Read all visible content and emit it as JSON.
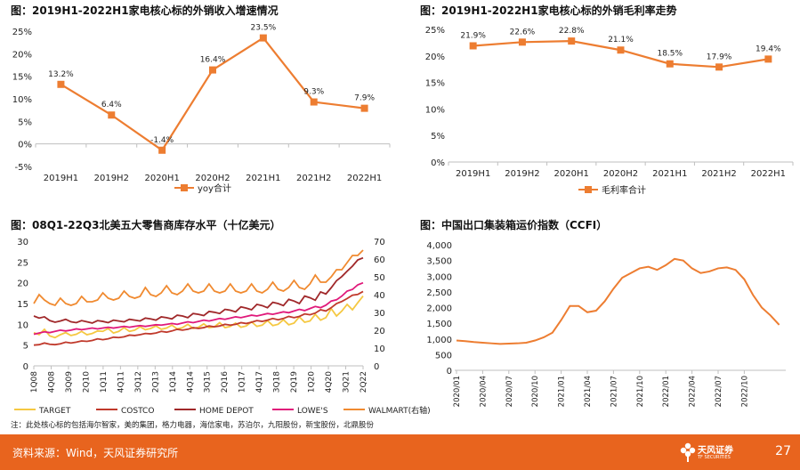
{
  "panels": {
    "p1": {
      "title": "图：2019H1-2022H1家电核心标的外销收入增速情况"
    },
    "p2": {
      "title": "图：2019H1-2022H1家电核心标的外销毛利率走势"
    },
    "p3": {
      "title": "图：08Q1-22Q3北美五大零售商库存水平（十亿美元）"
    },
    "p4": {
      "title": "图：中国出口集装箱运价指数（CCFI）"
    }
  },
  "note": "注：此处核心标的包括海尔智家，美的集团，格力电器，海信家电，苏泊尔，九阳股份，新宝股份，北鼎股份",
  "footer": {
    "source": "资料来源：Wind，天风证券研究所",
    "page": "27",
    "logo_name": "天风证券",
    "logo_sub": "TF SECURITIES"
  },
  "colors": {
    "orange": "#ED7D31",
    "footer": "#E8641E",
    "target": "#F5C842",
    "costco": "#C0392B",
    "homedepot": "#A0282A",
    "lowes": "#E0197A",
    "walmart": "#F08A30"
  },
  "chart_data": [
    {
      "type": "line",
      "categories": [
        "2019H1",
        "2019H2",
        "2020H1",
        "2020H2",
        "2021H1",
        "2021H2",
        "2022H1"
      ],
      "series": [
        {
          "name": "yoy合计",
          "values": [
            13.2,
            6.4,
            -1.4,
            16.4,
            23.5,
            9.3,
            7.9
          ]
        }
      ],
      "data_labels": [
        "13.2%",
        "6.4%",
        "-1.4%",
        "16.4%",
        "23.5%",
        "9.3%",
        "7.9%"
      ],
      "ylim": [
        -5,
        25
      ],
      "yticks": [
        "-5%",
        "0%",
        "5%",
        "10%",
        "15%",
        "20%",
        "25%"
      ],
      "legend": "bottom"
    },
    {
      "type": "line",
      "categories": [
        "2019H1",
        "2019H2",
        "2020H1",
        "2020H2",
        "2021H1",
        "2021H2",
        "2022H1"
      ],
      "series": [
        {
          "name": "毛利率合计",
          "values": [
            21.9,
            22.6,
            22.8,
            21.1,
            18.5,
            17.9,
            19.4
          ]
        }
      ],
      "data_labels": [
        "21.9%",
        "22.6%",
        "22.8%",
        "21.1%",
        "18.5%",
        "17.9%",
        "19.4%"
      ],
      "ylim": [
        0,
        25
      ],
      "yticks": [
        "0%",
        "5%",
        "10%",
        "15%",
        "20%",
        "25%"
      ],
      "legend": "bottom"
    },
    {
      "type": "line",
      "x_tick_labels": [
        "1Q08",
        "4Q08",
        "3Q09",
        "2Q10",
        "1Q11",
        "4Q11",
        "3Q12",
        "2Q13",
        "1Q14",
        "4Q14",
        "3Q15",
        "2Q16",
        "1Q17",
        "4Q17",
        "3Q18",
        "2Q19",
        "1Q20",
        "4Q20",
        "3Q21",
        "2Q22"
      ],
      "ylim": [
        0,
        30
      ],
      "yticks": [
        "0",
        "5",
        "10",
        "15",
        "20",
        "25",
        "30"
      ],
      "y2lim": [
        0,
        70
      ],
      "y2ticks": [
        "0",
        "10",
        "20",
        "30",
        "40",
        "50",
        "60",
        "70"
      ],
      "legend": "bottom",
      "series": [
        {
          "name": "TARGET",
          "axis": "left",
          "values": [
            8.0,
            7.5,
            8.8,
            7.2,
            6.8,
            7.5,
            8.0,
            7.3,
            7.6,
            8.3,
            7.5,
            7.8,
            8.4,
            8.3,
            9.0,
            7.9,
            8.3,
            9.2,
            8.3,
            8.6,
            9.4,
            8.7,
            9.0,
            9.6,
            8.8,
            9.1,
            9.8,
            8.9,
            9.2,
            10.0,
            9.0,
            9.3,
            10.1,
            9.2,
            9.4,
            10.4,
            9.2,
            9.5,
            10.3,
            9.3,
            9.6,
            10.6,
            9.5,
            9.8,
            10.9,
            9.7,
            10.0,
            11.1,
            9.9,
            10.3,
            11.8,
            10.5,
            10.8,
            12.4,
            11.0,
            11.6,
            13.8,
            12.0,
            13.2,
            14.8,
            13.5,
            15.2,
            16.8
          ]
        },
        {
          "name": "COSTCO",
          "axis": "left",
          "values": [
            5.0,
            5.1,
            5.5,
            5.2,
            5.1,
            5.3,
            5.7,
            5.5,
            5.7,
            6.0,
            5.9,
            6.1,
            6.5,
            6.3,
            6.5,
            6.9,
            6.8,
            7.0,
            7.4,
            7.3,
            7.5,
            7.8,
            7.7,
            7.9,
            8.3,
            8.1,
            8.4,
            8.8,
            8.6,
            8.8,
            9.2,
            9.0,
            9.2,
            9.6,
            9.4,
            9.6,
            10.0,
            9.8,
            10.0,
            10.4,
            10.2,
            10.5,
            10.9,
            10.7,
            11.0,
            11.4,
            11.1,
            11.4,
            11.9,
            11.6,
            11.9,
            12.5,
            12.3,
            12.7,
            13.5,
            13.2,
            14.0,
            15.0,
            15.5,
            16.2,
            17.0,
            17.2,
            17.9
          ]
        },
        {
          "name": "HOME DEPOT",
          "axis": "left",
          "values": [
            12.0,
            11.5,
            11.8,
            10.9,
            10.5,
            10.8,
            11.2,
            10.6,
            10.4,
            10.9,
            10.6,
            10.3,
            10.9,
            10.7,
            10.4,
            11.0,
            10.8,
            10.6,
            11.2,
            11.0,
            10.8,
            11.5,
            11.3,
            11.0,
            11.8,
            11.6,
            11.3,
            12.2,
            12.0,
            11.6,
            12.6,
            12.4,
            12.1,
            13.1,
            12.9,
            12.6,
            13.6,
            13.4,
            13.0,
            14.2,
            13.9,
            13.5,
            14.8,
            14.5,
            14.0,
            15.3,
            15.0,
            14.5,
            16.0,
            15.6,
            15.0,
            16.8,
            16.4,
            15.8,
            17.8,
            17.3,
            18.8,
            20.5,
            21.5,
            22.8,
            24.0,
            25.5,
            26.0
          ]
        },
        {
          "name": "LOWE'S",
          "axis": "left",
          "values": [
            7.6,
            7.9,
            8.2,
            8.0,
            8.3,
            8.6,
            8.4,
            8.6,
            8.9,
            8.7,
            8.9,
            9.1,
            8.9,
            9.1,
            9.3,
            9.1,
            9.3,
            9.5,
            9.3,
            9.5,
            9.7,
            9.5,
            9.7,
            9.9,
            9.8,
            10.0,
            10.2,
            10.0,
            10.3,
            10.6,
            10.4,
            10.7,
            11.0,
            10.8,
            11.1,
            11.4,
            11.2,
            11.5,
            11.8,
            11.6,
            11.9,
            12.2,
            12.0,
            12.3,
            12.6,
            12.4,
            12.7,
            13.0,
            12.8,
            13.2,
            13.6,
            13.3,
            13.8,
            14.3,
            14.0,
            14.6,
            15.6,
            15.9,
            16.8,
            18.0,
            18.4,
            19.5,
            20.0
          ]
        },
        {
          "name": "WALMART(右轴)",
          "axis": "right",
          "values": [
            35,
            40,
            37,
            35,
            34,
            38,
            35,
            34,
            35,
            39,
            36,
            36,
            37,
            41,
            38,
            37,
            38,
            42,
            39,
            38,
            39,
            44,
            40,
            39,
            41,
            45,
            41,
            40,
            42,
            46,
            42,
            41,
            42,
            46,
            42,
            41,
            42,
            46,
            42,
            41,
            42,
            46,
            42,
            41,
            43,
            47,
            43,
            42,
            44,
            48,
            44,
            43,
            46,
            51,
            47,
            47,
            50,
            54,
            54,
            58,
            62,
            62,
            65
          ]
        }
      ]
    },
    {
      "type": "line",
      "x_tick_labels": [
        "2020/01",
        "2020/04",
        "2020/07",
        "2020/10",
        "2021/01",
        "2021/04",
        "2021/07",
        "2021/10",
        "2022/01",
        "2022/04",
        "2022/07",
        "2022/10"
      ],
      "ylim": [
        0,
        4000
      ],
      "yticks": [
        "0",
        "500",
        "1,000",
        "1,500",
        "2,000",
        "2,500",
        "3,000",
        "3,500",
        "4,000"
      ],
      "series": [
        {
          "name": "",
          "values": [
            [
              0,
              950
            ],
            [
              1,
              930
            ],
            [
              2,
              900
            ],
            [
              3,
              880
            ],
            [
              4,
              860
            ],
            [
              5,
              840
            ],
            [
              6,
              850
            ],
            [
              7,
              860
            ],
            [
              8,
              880
            ],
            [
              9,
              950
            ],
            [
              10,
              1050
            ],
            [
              11,
              1200
            ],
            [
              12,
              1600
            ],
            [
              13,
              2050
            ],
            [
              14,
              2050
            ],
            [
              15,
              1850
            ],
            [
              16,
              1900
            ],
            [
              17,
              2200
            ],
            [
              18,
              2600
            ],
            [
              19,
              2950
            ],
            [
              20,
              3100
            ],
            [
              21,
              3250
            ],
            [
              22,
              3300
            ],
            [
              23,
              3200
            ],
            [
              24,
              3350
            ],
            [
              25,
              3550
            ],
            [
              26,
              3500
            ],
            [
              27,
              3250
            ],
            [
              28,
              3100
            ],
            [
              29,
              3150
            ],
            [
              30,
              3250
            ],
            [
              31,
              3280
            ],
            [
              32,
              3200
            ],
            [
              33,
              2900
            ],
            [
              34,
              2400
            ],
            [
              35,
              2000
            ],
            [
              36,
              1750
            ],
            [
              37,
              1450
            ]
          ]
        }
      ]
    }
  ]
}
